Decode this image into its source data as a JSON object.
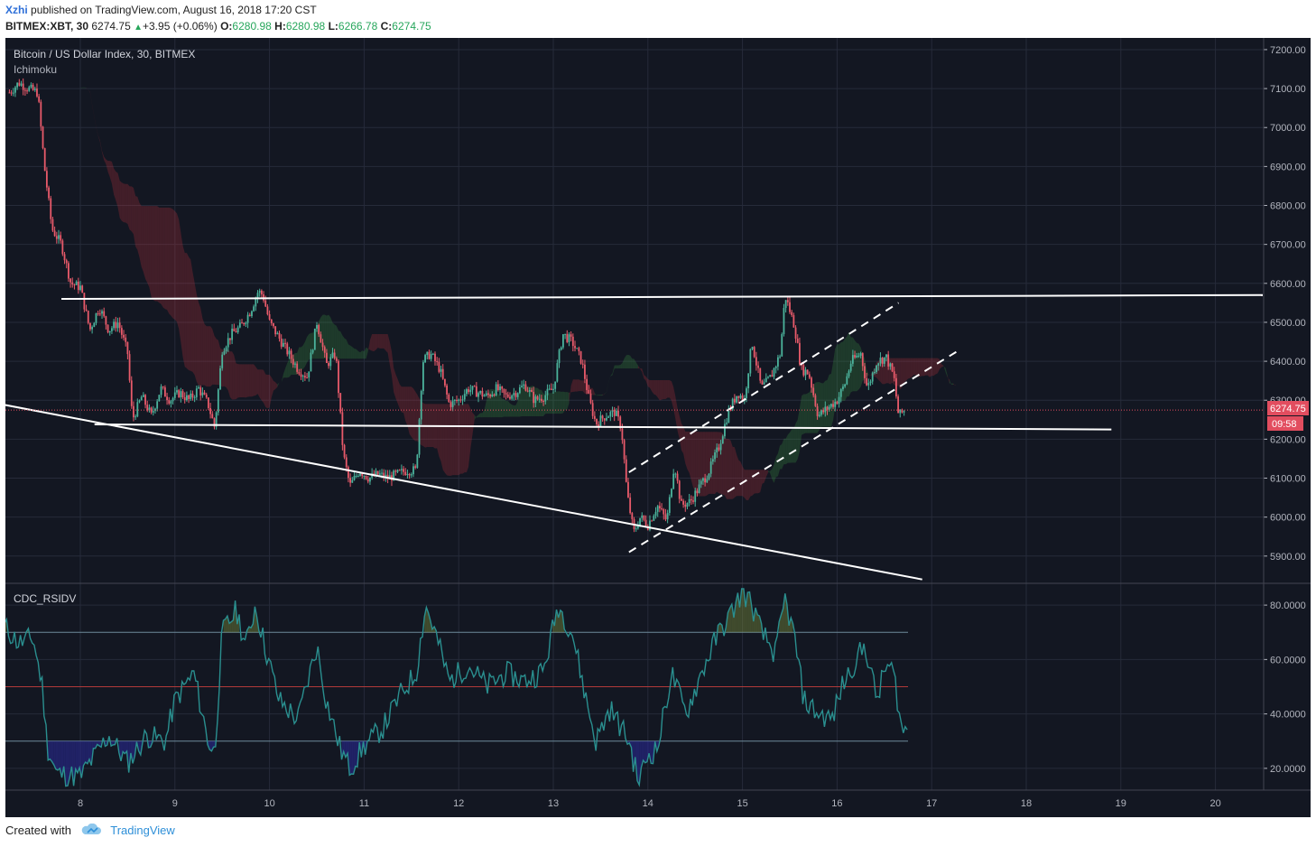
{
  "header": {
    "author": "Xzhi",
    "published_text": "published on TradingView.com, August 16, 2018 17:20 CST",
    "symbol": "BITMEX:XBT, 30",
    "last": "6274.75",
    "change_arrow": "▲",
    "change": "+3.95 (+0.06%)",
    "open_label": "O:",
    "open": "6280.98",
    "high_label": "H:",
    "high": "6280.98",
    "low_label": "L:",
    "low": "6266.78",
    "close_label": "C:",
    "close": "6274.75"
  },
  "footer": {
    "created_with": "Created with",
    "brand": "TradingView",
    "logo_icon": "tradingview-cloud-logo-icon"
  },
  "colors": {
    "background": "#131722",
    "grid": "#262b3a",
    "up": "#4bb39c",
    "down": "#e85a6a",
    "trend": "#ffffff",
    "rsi_line": "#2a8f8f",
    "rsi_mid": "#b23a3a",
    "rsi_band": "#6c8a9a",
    "price_tag": "#e24d5f",
    "axis_text": "#b2b5be"
  },
  "chart_data": [
    {
      "type": "candlestick",
      "title": "Bitcoin / US Dollar Index, 30, BITMEX",
      "indicator": "Ichimoku",
      "x_tick_labels": [
        "8",
        "9",
        "10",
        "11",
        "12",
        "13",
        "14",
        "15",
        "16",
        "17",
        "18",
        "19",
        "20"
      ],
      "y_tick_labels": [
        "7200.00",
        "7100.00",
        "7000.00",
        "6900.00",
        "6800.00",
        "6700.00",
        "6600.00",
        "6500.00",
        "6400.00",
        "6300.00",
        "6200.00",
        "6100.00",
        "6000.00",
        "5900.00"
      ],
      "ylim": [
        5830,
        7230
      ],
      "last_price_tag": "6274.75",
      "countdown_tag": "09:58",
      "close_path": [
        [
          7.25,
          7090
        ],
        [
          7.35,
          7115
        ],
        [
          7.45,
          7100
        ],
        [
          7.55,
          7090
        ],
        [
          7.62,
          6900
        ],
        [
          7.7,
          6740
        ],
        [
          7.8,
          6700
        ],
        [
          7.9,
          6600
        ],
        [
          8.0,
          6590
        ],
        [
          8.1,
          6480
        ],
        [
          8.2,
          6540
        ],
        [
          8.3,
          6480
        ],
        [
          8.4,
          6500
        ],
        [
          8.5,
          6420
        ],
        [
          8.55,
          6250
        ],
        [
          8.65,
          6310
        ],
        [
          8.75,
          6260
        ],
        [
          8.85,
          6330
        ],
        [
          8.95,
          6300
        ],
        [
          9.05,
          6320
        ],
        [
          9.15,
          6300
        ],
        [
          9.25,
          6330
        ],
        [
          9.35,
          6290
        ],
        [
          9.42,
          6230
        ],
        [
          9.5,
          6430
        ],
        [
          9.6,
          6470
        ],
        [
          9.7,
          6490
        ],
        [
          9.8,
          6530
        ],
        [
          9.88,
          6580
        ],
        [
          9.93,
          6570
        ],
        [
          10.0,
          6500
        ],
        [
          10.1,
          6460
        ],
        [
          10.2,
          6420
        ],
        [
          10.3,
          6380
        ],
        [
          10.4,
          6360
        ],
        [
          10.5,
          6500
        ],
        [
          10.55,
          6450
        ],
        [
          10.6,
          6390
        ],
        [
          10.7,
          6420
        ],
        [
          10.78,
          6160
        ],
        [
          10.85,
          6080
        ],
        [
          10.95,
          6120
        ],
        [
          11.05,
          6100
        ],
        [
          11.15,
          6110
        ],
        [
          11.25,
          6100
        ],
        [
          11.35,
          6110
        ],
        [
          11.45,
          6120
        ],
        [
          11.55,
          6120
        ],
        [
          11.62,
          6400
        ],
        [
          11.7,
          6420
        ],
        [
          11.8,
          6380
        ],
        [
          11.9,
          6290
        ],
        [
          12.0,
          6300
        ],
        [
          12.1,
          6330
        ],
        [
          12.2,
          6320
        ],
        [
          12.3,
          6310
        ],
        [
          12.4,
          6330
        ],
        [
          12.5,
          6310
        ],
        [
          12.6,
          6320
        ],
        [
          12.7,
          6340
        ],
        [
          12.8,
          6300
        ],
        [
          12.9,
          6310
        ],
        [
          13.0,
          6330
        ],
        [
          13.1,
          6470
        ],
        [
          13.2,
          6450
        ],
        [
          13.3,
          6400
        ],
        [
          13.38,
          6300
        ],
        [
          13.45,
          6240
        ],
        [
          13.55,
          6260
        ],
        [
          13.65,
          6270
        ],
        [
          13.72,
          6230
        ],
        [
          13.78,
          6060
        ],
        [
          13.85,
          5960
        ],
        [
          13.92,
          6000
        ],
        [
          14.0,
          5980
        ],
        [
          14.1,
          6030
        ],
        [
          14.2,
          5990
        ],
        [
          14.28,
          6140
        ],
        [
          14.35,
          6030
        ],
        [
          14.45,
          6040
        ],
        [
          14.55,
          6080
        ],
        [
          14.65,
          6120
        ],
        [
          14.75,
          6180
        ],
        [
          14.85,
          6270
        ],
        [
          14.95,
          6320
        ],
        [
          15.02,
          6300
        ],
        [
          15.1,
          6450
        ],
        [
          15.2,
          6330
        ],
        [
          15.3,
          6360
        ],
        [
          15.4,
          6420
        ],
        [
          15.45,
          6570
        ],
        [
          15.55,
          6490
        ],
        [
          15.62,
          6380
        ],
        [
          15.7,
          6370
        ],
        [
          15.8,
          6260
        ],
        [
          15.9,
          6280
        ],
        [
          16.0,
          6300
        ],
        [
          16.08,
          6340
        ],
        [
          16.15,
          6400
        ],
        [
          16.25,
          6420
        ],
        [
          16.32,
          6330
        ],
        [
          16.42,
          6400
        ],
        [
          16.52,
          6410
        ],
        [
          16.6,
          6360
        ],
        [
          16.65,
          6260
        ],
        [
          16.72,
          6275
        ]
      ],
      "trendlines": [
        {
          "style": "solid",
          "from": [
            7.8,
            6560
          ],
          "to": [
            20.5,
            6570
          ]
        },
        {
          "style": "solid",
          "from": [
            8.15,
            6238
          ],
          "to": [
            18.9,
            6225
          ]
        },
        {
          "style": "solid",
          "from": [
            7.2,
            6288
          ],
          "to": [
            16.9,
            5840
          ]
        },
        {
          "style": "dashed",
          "from": [
            13.8,
            6115
          ],
          "to": [
            16.65,
            6550
          ]
        },
        {
          "style": "dashed",
          "from": [
            13.8,
            5910
          ],
          "to": [
            17.3,
            6430
          ]
        }
      ]
    },
    {
      "type": "line",
      "title": "CDC_RSIDV",
      "y_tick_labels": [
        "80.0000",
        "60.0000",
        "40.0000",
        "20.0000"
      ],
      "ylim": [
        12,
        88
      ],
      "bands": {
        "upper": 70,
        "middle": 50,
        "lower": 30
      },
      "x_end": 16.75,
      "keypoints": [
        [
          7.2,
          72
        ],
        [
          7.35,
          66
        ],
        [
          7.5,
          68
        ],
        [
          7.6,
          50
        ],
        [
          7.65,
          28
        ],
        [
          7.75,
          18
        ],
        [
          8.0,
          17
        ],
        [
          8.3,
          32
        ],
        [
          8.5,
          22
        ],
        [
          8.7,
          32
        ],
        [
          8.9,
          30
        ],
        [
          9.0,
          45
        ],
        [
          9.2,
          55
        ],
        [
          9.35,
          30
        ],
        [
          9.42,
          25
        ],
        [
          9.5,
          70
        ],
        [
          9.65,
          78
        ],
        [
          9.75,
          65
        ],
        [
          9.85,
          80
        ],
        [
          9.95,
          65
        ],
        [
          10.1,
          45
        ],
        [
          10.3,
          38
        ],
        [
          10.5,
          65
        ],
        [
          10.6,
          45
        ],
        [
          10.75,
          27
        ],
        [
          10.85,
          20
        ],
        [
          11.0,
          28
        ],
        [
          11.2,
          35
        ],
        [
          11.4,
          48
        ],
        [
          11.55,
          55
        ],
        [
          11.65,
          80
        ],
        [
          11.75,
          70
        ],
        [
          11.9,
          52
        ],
        [
          12.1,
          58
        ],
        [
          12.3,
          50
        ],
        [
          12.5,
          55
        ],
        [
          12.7,
          52
        ],
        [
          12.9,
          56
        ],
        [
          13.05,
          80
        ],
        [
          13.2,
          70
        ],
        [
          13.35,
          45
        ],
        [
          13.45,
          30
        ],
        [
          13.6,
          42
        ],
        [
          13.8,
          30
        ],
        [
          13.9,
          15
        ],
        [
          14.0,
          25
        ],
        [
          14.1,
          27
        ],
        [
          14.25,
          55
        ],
        [
          14.4,
          40
        ],
        [
          14.6,
          58
        ],
        [
          14.75,
          70
        ],
        [
          14.85,
          75
        ],
        [
          15.0,
          85
        ],
        [
          15.1,
          80
        ],
        [
          15.2,
          70
        ],
        [
          15.35,
          62
        ],
        [
          15.45,
          82
        ],
        [
          15.55,
          68
        ],
        [
          15.65,
          45
        ],
        [
          15.8,
          40
        ],
        [
          15.95,
          38
        ],
        [
          16.05,
          50
        ],
        [
          16.2,
          60
        ],
        [
          16.3,
          65
        ],
        [
          16.42,
          45
        ],
        [
          16.52,
          58
        ],
        [
          16.6,
          55
        ],
        [
          16.68,
          35
        ],
        [
          16.75,
          33
        ]
      ]
    }
  ]
}
